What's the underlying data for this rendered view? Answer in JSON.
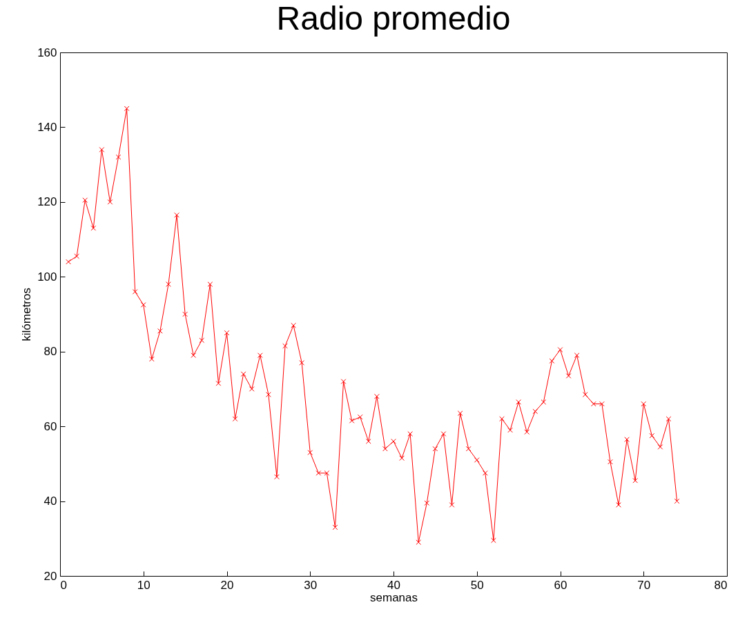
{
  "chart_data": {
    "type": "line",
    "title": "Radio promedio",
    "xlabel": "semanas",
    "ylabel": "kilómetros",
    "x": [
      1,
      2,
      3,
      4,
      5,
      6,
      7,
      8,
      9,
      10,
      11,
      12,
      13,
      14,
      15,
      16,
      17,
      18,
      19,
      20,
      21,
      22,
      23,
      24,
      25,
      26,
      27,
      28,
      29,
      30,
      31,
      32,
      33,
      34,
      35,
      36,
      37,
      38,
      39,
      40,
      41,
      42,
      43,
      44,
      45,
      46,
      47,
      48,
      49,
      50,
      51,
      52,
      53,
      54,
      55,
      56,
      57,
      58,
      59,
      60,
      61,
      62,
      63,
      64,
      65,
      66,
      67,
      68,
      69,
      70,
      71,
      72,
      73,
      74
    ],
    "series": [
      {
        "color": "#ff0000",
        "values": [
          104,
          105.5,
          120.5,
          113,
          134,
          120,
          132,
          145,
          96,
          92.5,
          78,
          85.5,
          98,
          116.5,
          90,
          79,
          83,
          98,
          71.5,
          85,
          62,
          74,
          70,
          79,
          68.5,
          46.5,
          81.5,
          87,
          77,
          53,
          47.5,
          47.5,
          33,
          72,
          61.5,
          62.5,
          56,
          68,
          54,
          56,
          51.5,
          58,
          29,
          39.5,
          54,
          58,
          39,
          63.5,
          54,
          51,
          47.5,
          29.5,
          62,
          59,
          66.5,
          58.5,
          64,
          66.5,
          77.5,
          80.5,
          73.5,
          79,
          68.5,
          66,
          66,
          50.5,
          39,
          56.5,
          45.5,
          66,
          57.5,
          54.5,
          62,
          40
        ]
      }
    ],
    "xlim": [
      0,
      80
    ],
    "xticks": [
      0,
      10,
      20,
      30,
      40,
      50,
      60,
      70,
      80
    ],
    "ylim": [
      20,
      160
    ],
    "yticks": [
      20,
      40,
      60,
      80,
      100,
      120,
      140,
      160
    ],
    "marker": "cross",
    "line_style": "solid",
    "grid": false,
    "legend": false
  }
}
